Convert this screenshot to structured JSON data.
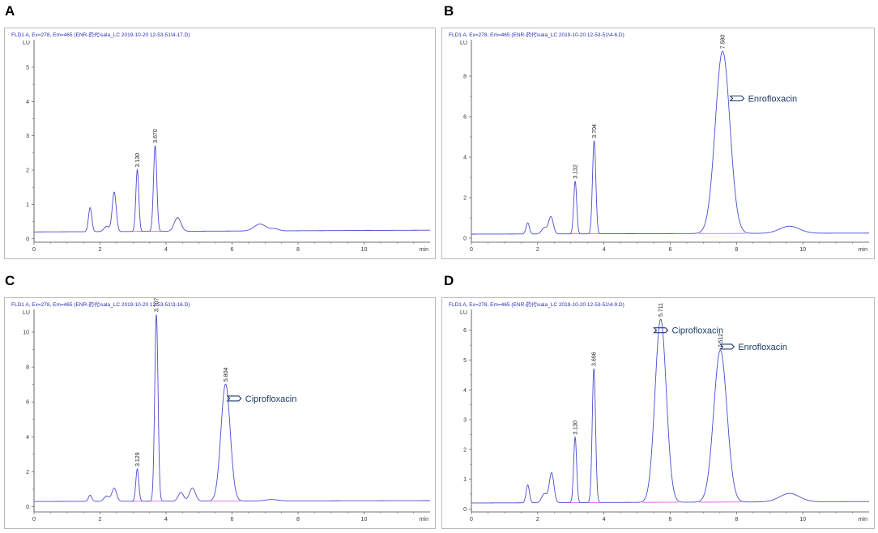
{
  "chart_data": [
    {
      "panel_label": "A",
      "type": "line",
      "title": "FLD1 A, Ex=278, Em=465 (ENR-药代\\sala_LC 2019-10-20 12-53-51\\4-17.D)",
      "ylabel": "LU",
      "xlabel": "min",
      "xlim": [
        0,
        12
      ],
      "ylim": [
        -0.1,
        5.8
      ],
      "x_ticks": [
        "0",
        "2",
        "4",
        "6",
        "8",
        "10"
      ],
      "y_ticks": [
        "0",
        "1",
        "2",
        "3",
        "4",
        "5"
      ],
      "baseline": {
        "start": 0.2,
        "end": 0.25
      },
      "peaks": [
        {
          "x": 1.7,
          "height": 0.7,
          "width": 0.05,
          "label": ""
        },
        {
          "x": 2.2,
          "height": 0.15,
          "width": 0.08,
          "label": ""
        },
        {
          "x": 2.43,
          "height": 1.15,
          "width": 0.06,
          "label": ""
        },
        {
          "x": 3.13,
          "height": 1.8,
          "width": 0.045,
          "label": "3.130"
        },
        {
          "x": 3.67,
          "height": 2.5,
          "width": 0.05,
          "label": "3.670"
        },
        {
          "x": 4.35,
          "height": 0.4,
          "width": 0.1,
          "label": ""
        },
        {
          "x": 6.85,
          "height": 0.2,
          "width": 0.18,
          "label": ""
        },
        {
          "x": 7.3,
          "height": 0.06,
          "width": 0.12,
          "label": ""
        }
      ],
      "annotations": []
    },
    {
      "panel_label": "B",
      "type": "line",
      "title": "FLD1 A, Ex=278, Em=465 (ENR-药代\\sala_LC 2019-10-20 12-53-51\\4-6.D)",
      "ylabel": "LU",
      "xlabel": "min",
      "xlim": [
        0,
        12
      ],
      "ylim": [
        -0.2,
        9.8
      ],
      "x_ticks": [
        "0",
        "2",
        "4",
        "6",
        "8",
        "10"
      ],
      "y_ticks": [
        "0",
        "2",
        "4",
        "6",
        "8"
      ],
      "baseline": {
        "start": 0.2,
        "end": 0.25
      },
      "peaks": [
        {
          "x": 1.7,
          "height": 0.55,
          "width": 0.05,
          "label": ""
        },
        {
          "x": 2.2,
          "height": 0.3,
          "width": 0.08,
          "label": ""
        },
        {
          "x": 2.4,
          "height": 0.85,
          "width": 0.07,
          "label": ""
        },
        {
          "x": 3.132,
          "height": 2.6,
          "width": 0.045,
          "label": "3.132"
        },
        {
          "x": 3.704,
          "height": 4.6,
          "width": 0.05,
          "label": "3.704"
        },
        {
          "x": 7.58,
          "height": 9.0,
          "width": 0.22,
          "label": "7.580"
        },
        {
          "x": 9.6,
          "height": 0.35,
          "width": 0.3,
          "label": ""
        }
      ],
      "annotations": [
        {
          "text": "Enrofloxacin",
          "x": 8.3,
          "y": 6.9
        }
      ]
    },
    {
      "panel_label": "C",
      "type": "line",
      "title": "FLD1 A, Ex=278, Em=465 (ENR-药代\\sala_LC 2019-10-20 12-53-51\\3-16.D)",
      "ylabel": "LU",
      "xlabel": "min",
      "xlim": [
        0,
        12
      ],
      "ylim": [
        -0.3,
        11.3
      ],
      "x_ticks": [
        "0",
        "2",
        "4",
        "6",
        "8",
        "10"
      ],
      "y_ticks": [
        "0",
        "2",
        "4",
        "6",
        "8",
        "10"
      ],
      "baseline": {
        "start": 0.3,
        "end": 0.35
      },
      "peaks": [
        {
          "x": 1.7,
          "height": 0.35,
          "width": 0.05,
          "label": ""
        },
        {
          "x": 2.2,
          "height": 0.3,
          "width": 0.08,
          "label": ""
        },
        {
          "x": 2.43,
          "height": 0.75,
          "width": 0.07,
          "label": ""
        },
        {
          "x": 3.129,
          "height": 1.85,
          "width": 0.045,
          "label": "3.129"
        },
        {
          "x": 3.707,
          "height": 10.7,
          "width": 0.05,
          "label": "3.707"
        },
        {
          "x": 4.45,
          "height": 0.5,
          "width": 0.08,
          "label": ""
        },
        {
          "x": 4.8,
          "height": 0.75,
          "width": 0.09,
          "label": ""
        },
        {
          "x": 5.804,
          "height": 6.7,
          "width": 0.14,
          "label": "5.804"
        },
        {
          "x": 7.2,
          "height": 0.08,
          "width": 0.2,
          "label": ""
        }
      ],
      "annotations": [
        {
          "text": "Ciprofloxacin",
          "x": 6.35,
          "y": 6.2
        }
      ]
    },
    {
      "panel_label": "D",
      "type": "line",
      "title": "FLD1 A, Ex=278, Em=465 (ENR-药代\\sala_LC 2019-10-20 12-53-51\\4-9.D)",
      "ylabel": "LU",
      "xlabel": "min",
      "xlim": [
        0,
        12
      ],
      "ylim": [
        -0.1,
        6.7
      ],
      "x_ticks": [
        "0",
        "2",
        "4",
        "6",
        "8",
        "10"
      ],
      "y_ticks": [
        "0",
        "1",
        "2",
        "3",
        "4",
        "5",
        "6"
      ],
      "baseline": {
        "start": 0.2,
        "end": 0.25
      },
      "peaks": [
        {
          "x": 1.7,
          "height": 0.6,
          "width": 0.05,
          "label": ""
        },
        {
          "x": 2.2,
          "height": 0.3,
          "width": 0.08,
          "label": ""
        },
        {
          "x": 2.42,
          "height": 1.0,
          "width": 0.07,
          "label": ""
        },
        {
          "x": 3.13,
          "height": 2.2,
          "width": 0.045,
          "label": "3.130"
        },
        {
          "x": 3.696,
          "height": 4.5,
          "width": 0.05,
          "label": "3.696"
        },
        {
          "x": 5.711,
          "height": 6.15,
          "width": 0.17,
          "label": "5.711"
        },
        {
          "x": 7.512,
          "height": 5.1,
          "width": 0.2,
          "label": "7.512"
        },
        {
          "x": 9.6,
          "height": 0.28,
          "width": 0.3,
          "label": ""
        }
      ],
      "annotations": [
        {
          "text": "Ciprofloxacin",
          "x": 6.0,
          "y": 6.0
        },
        {
          "text": "Enrofloxacin",
          "x": 8.0,
          "y": 5.45
        }
      ]
    }
  ],
  "colors": {
    "trace": "#4b4bd1",
    "integration": "#e14fe0",
    "title_text": "#2a2ab8",
    "axis": "#444444",
    "annotation": "#1f3b66"
  }
}
